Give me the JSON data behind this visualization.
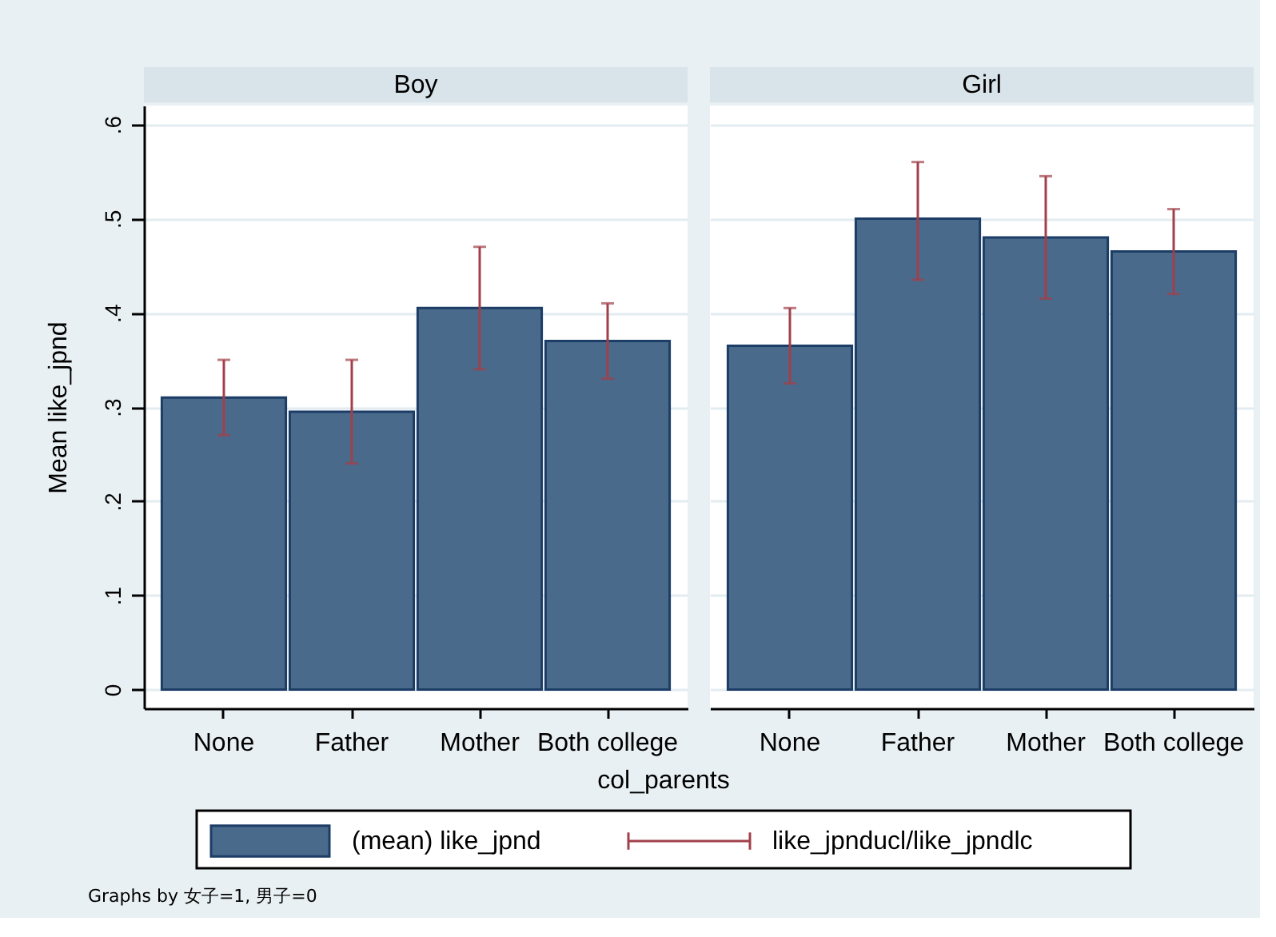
{
  "chart_data": [
    {
      "type": "bar",
      "title": "Boy",
      "xlabel": "col_parents",
      "ylabel": "Mean like_jpnd",
      "categories": [
        "None",
        "Father",
        "Mother",
        "Both college"
      ],
      "series": [
        {
          "name": "(mean) like_jpnd",
          "color": "#4a6a8c",
          "values": [
            0.31,
            0.295,
            0.405,
            0.37
          ],
          "errors": [
            [
              0.27,
              0.35
            ],
            [
              0.24,
              0.35
            ],
            [
              0.34,
              0.47
            ],
            [
              0.33,
              0.41
            ]
          ]
        }
      ],
      "ylim": [
        -0.02,
        0.62
      ],
      "yticks": [
        0,
        {
          "value": 0.1,
          "label": ".1"
        },
        {
          "value": 0.2,
          "label": ".2"
        },
        {
          "value": 0.3,
          "label": ".3"
        },
        {
          "value": 0.4,
          "label": ".4"
        },
        {
          "value": 0.5,
          "label": ".5"
        },
        {
          "value": 0.6,
          "label": ".6"
        }
      ],
      "grid": "y",
      "legend": "bottom",
      "annotations": [
        "like_jpnducl/like_jpndlc",
        "Graphs by 女子=1, 男子=0"
      ]
    },
    {
      "type": "bar",
      "title": "Girl",
      "categories": [
        "None",
        "Father",
        "Mother",
        "Both college"
      ],
      "series": [
        {
          "color": "#4a6a8c",
          "values": [
            0.365,
            0.5,
            0.48,
            0.465
          ],
          "errors": [
            [
              0.325,
              0.405
            ],
            [
              0.435,
              0.56
            ],
            [
              0.415,
              0.545
            ],
            [
              0.42,
              0.51
            ]
          ]
        }
      ],
      "ylim": [
        -0.02,
        0.62
      ],
      "yticks": [
        {
          "value": 0,
          "label": null
        },
        {
          "value": 0.1,
          "label": null
        },
        {
          "value": 0.2,
          "label": null
        },
        {
          "value": 0.3,
          "label": null
        },
        {
          "value": 0.4,
          "label": null
        },
        {
          "value": 0.5,
          "label": null
        },
        {
          "value": 0.6,
          "label": null
        }
      ],
      "grid": "y",
      "tick_labels": "x"
    }
  ]
}
